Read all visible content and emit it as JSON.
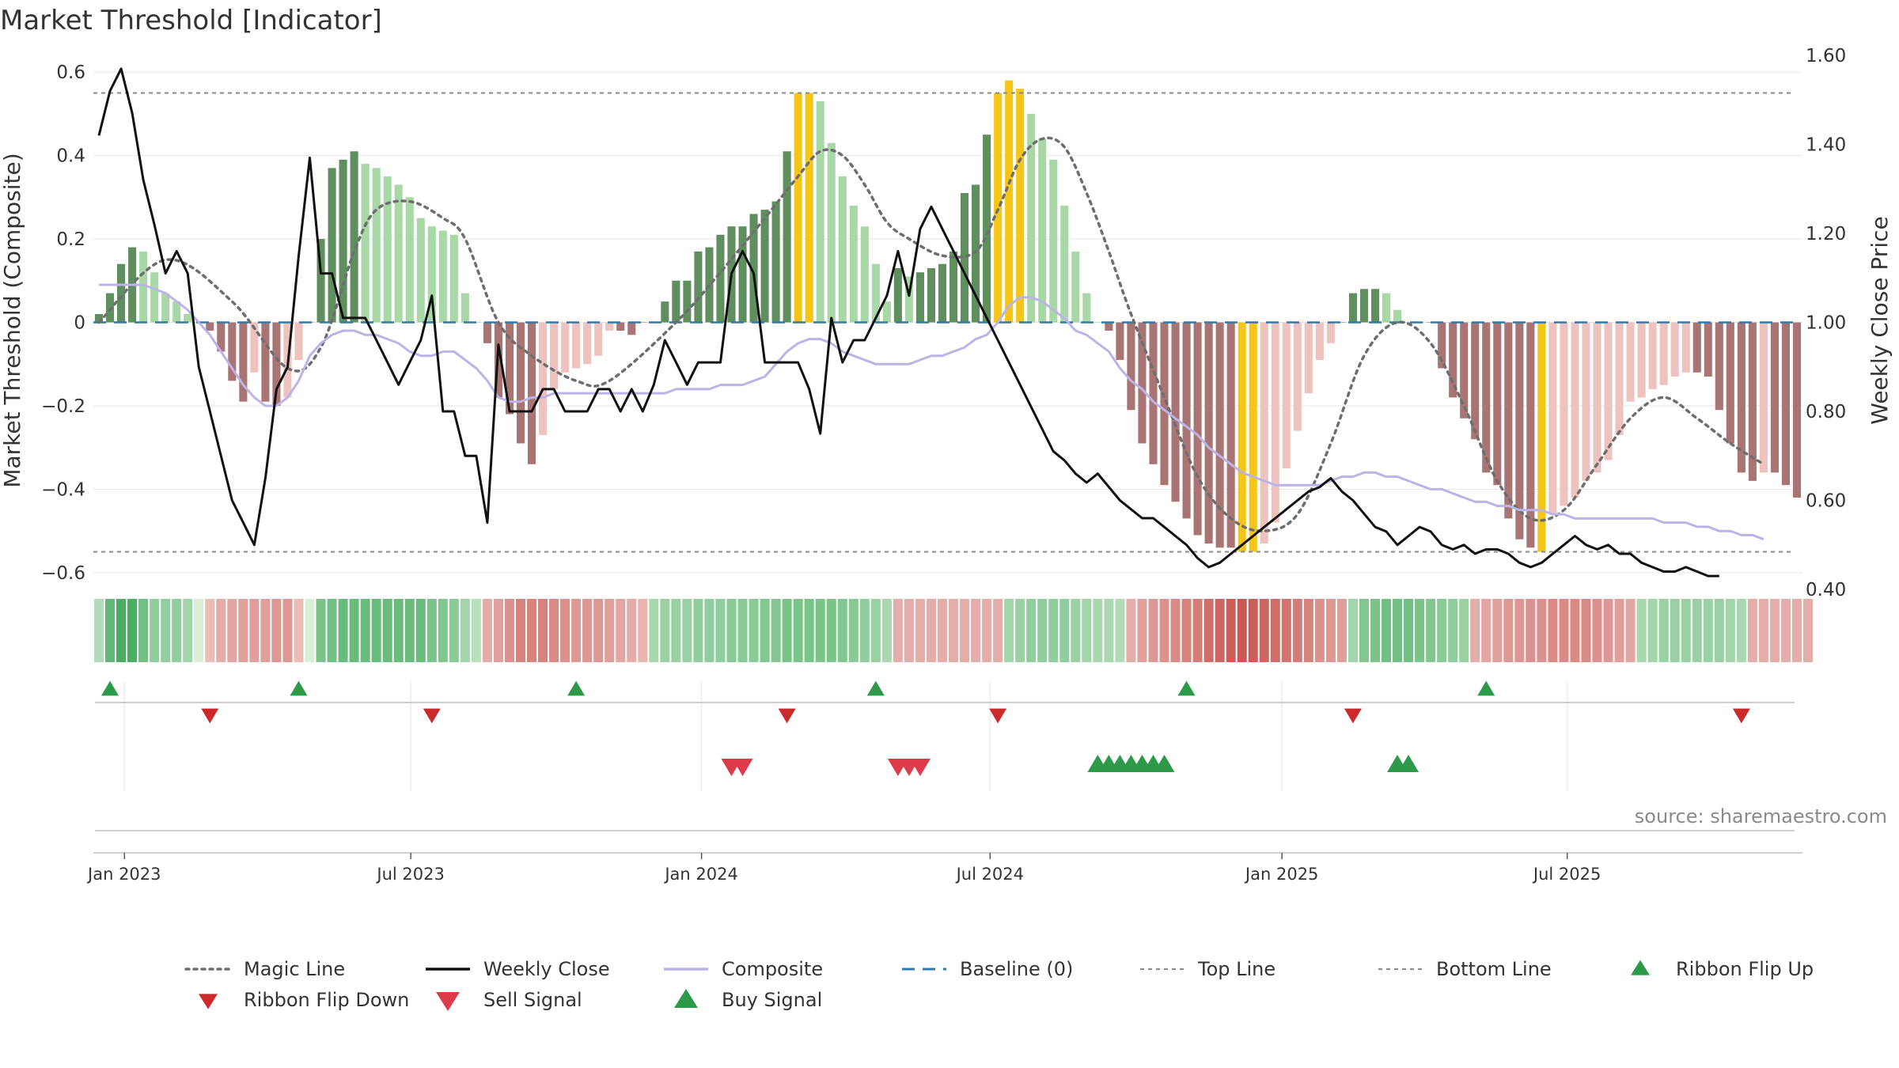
{
  "chart_data": {
    "type": "bar",
    "title": "Market Threshold [Indicator]",
    "ylabel": "Market Threshold (Composite)",
    "y2label": "Weekly Close Price",
    "ylim": [
      -0.64,
      0.64
    ],
    "y2lim": [
      0.4,
      1.6
    ],
    "yticks": [
      "0.6",
      "0.4",
      "0.2",
      "0",
      "−0.2",
      "−0.4",
      "−0.6"
    ],
    "ytick_values": [
      0.6,
      0.4,
      0.2,
      0,
      -0.2,
      -0.4,
      -0.6
    ],
    "y2ticks": [
      "1.60",
      "1.40",
      "1.20",
      "1.00",
      "0.80",
      "0.60",
      "0.40"
    ],
    "y2tick_values": [
      1.6,
      1.4,
      1.2,
      1.0,
      0.8,
      0.6,
      0.4
    ],
    "x_start": "2022-12-16",
    "x_step_weeks": 1,
    "xticks": [
      {
        "label": "Jan 2023",
        "week": 2.3
      },
      {
        "label": "Jul 2023",
        "week": 28.1
      },
      {
        "label": "Jan 2024",
        "week": 54.3
      },
      {
        "label": "Jul 2024",
        "week": 80.3
      },
      {
        "label": "Jan 2025",
        "week": 106.6
      },
      {
        "label": "Jul 2025",
        "week": 132.3
      }
    ],
    "top_line": 0.55,
    "bottom_line": -0.55,
    "bars": [
      0.02,
      0.07,
      0.14,
      0.18,
      0.17,
      0.12,
      0.07,
      0.05,
      0.02,
      0.0,
      -0.02,
      -0.07,
      -0.14,
      -0.19,
      -0.12,
      -0.19,
      -0.2,
      -0.18,
      -0.09,
      0.0,
      0.2,
      0.37,
      0.39,
      0.41,
      0.38,
      0.37,
      0.35,
      0.33,
      0.3,
      0.25,
      0.23,
      0.22,
      0.21,
      0.07,
      0.0,
      -0.05,
      -0.18,
      -0.22,
      -0.29,
      -0.34,
      -0.27,
      -0.16,
      -0.12,
      -0.11,
      -0.1,
      -0.08,
      -0.02,
      -0.02,
      -0.03,
      0.0,
      0.0,
      0.05,
      0.1,
      0.1,
      0.17,
      0.18,
      0.21,
      0.23,
      0.23,
      0.26,
      0.27,
      0.29,
      0.41,
      0.55,
      0.55,
      0.53,
      0.43,
      0.35,
      0.28,
      0.23,
      0.14,
      0.05,
      0.13,
      0.11,
      0.12,
      0.13,
      0.14,
      0.17,
      0.31,
      0.33,
      0.45,
      0.55,
      0.58,
      0.56,
      0.5,
      0.44,
      0.39,
      0.28,
      0.17,
      0.07,
      0.0,
      -0.02,
      -0.09,
      -0.21,
      -0.29,
      -0.34,
      -0.39,
      -0.43,
      -0.47,
      -0.51,
      -0.53,
      -0.54,
      -0.54,
      -0.55,
      -0.55,
      -0.53,
      -0.48,
      -0.35,
      -0.26,
      -0.17,
      -0.09,
      -0.05,
      0.0,
      0.07,
      0.08,
      0.08,
      0.07,
      0.03,
      0.0,
      0.0,
      0.0,
      -0.11,
      -0.18,
      -0.23,
      -0.28,
      -0.36,
      -0.39,
      -0.47,
      -0.52,
      -0.54,
      -0.55,
      -0.46,
      -0.44,
      -0.42,
      -0.38,
      -0.36,
      -0.33,
      -0.27,
      -0.19,
      -0.18,
      -0.16,
      -0.15,
      -0.13,
      -0.12,
      -0.12,
      -0.13,
      -0.21,
      -0.29,
      -0.36,
      -0.38,
      -0.36,
      -0.36,
      -0.39,
      -0.42
    ],
    "close": [
      1.42,
      1.52,
      1.57,
      1.47,
      1.32,
      1.22,
      1.11,
      1.16,
      1.11,
      0.9,
      0.8,
      0.7,
      0.6,
      0.55,
      0.5,
      0.65,
      0.85,
      0.9,
      1.15,
      1.37,
      1.11,
      1.11,
      1.01,
      1.01,
      1.01,
      0.96,
      0.91,
      0.86,
      0.91,
      0.96,
      1.06,
      0.8,
      0.8,
      0.7,
      0.7,
      0.55,
      0.95,
      0.8,
      0.8,
      0.8,
      0.85,
      0.85,
      0.8,
      0.8,
      0.8,
      0.85,
      0.85,
      0.8,
      0.85,
      0.8,
      0.86,
      0.96,
      0.91,
      0.86,
      0.91,
      0.91,
      0.91,
      1.11,
      1.16,
      1.11,
      0.91,
      0.91,
      0.91,
      0.91,
      0.85,
      0.75,
      1.01,
      0.91,
      0.96,
      0.96,
      1.01,
      1.06,
      1.16,
      1.06,
      1.21,
      1.26,
      1.21,
      1.16,
      1.11,
      1.06,
      1.01,
      0.96,
      0.91,
      0.86,
      0.81,
      0.76,
      0.71,
      0.69,
      0.66,
      0.64,
      0.66,
      0.63,
      0.6,
      0.58,
      0.56,
      0.56,
      0.54,
      0.52,
      0.5,
      0.47,
      0.45,
      0.46,
      0.48,
      0.5,
      0.52,
      0.54,
      0.56,
      0.58,
      0.6,
      0.62,
      0.63,
      0.65,
      0.62,
      0.6,
      0.57,
      0.54,
      0.53,
      0.5,
      0.52,
      0.54,
      0.53,
      0.5,
      0.49,
      0.5,
      0.48,
      0.49,
      0.49,
      0.48,
      0.46,
      0.45,
      0.46,
      0.48,
      0.5,
      0.52,
      0.5,
      0.49,
      0.5,
      0.48,
      0.48,
      0.46,
      0.45,
      0.44,
      0.44,
      0.45,
      0.44,
      0.43,
      0.43
    ],
    "composite": [
      0.09,
      0.09,
      0.09,
      0.09,
      0.09,
      0.08,
      0.07,
      0.05,
      0.03,
      0.0,
      -0.03,
      -0.07,
      -0.11,
      -0.15,
      -0.18,
      -0.2,
      -0.2,
      -0.18,
      -0.14,
      -0.08,
      -0.05,
      -0.03,
      -0.02,
      -0.02,
      -0.03,
      -0.03,
      -0.04,
      -0.05,
      -0.07,
      -0.08,
      -0.08,
      -0.07,
      -0.07,
      -0.09,
      -0.11,
      -0.14,
      -0.18,
      -0.19,
      -0.19,
      -0.18,
      -0.18,
      -0.17,
      -0.17,
      -0.17,
      -0.17,
      -0.17,
      -0.17,
      -0.17,
      -0.17,
      -0.17,
      -0.17,
      -0.17,
      -0.16,
      -0.16,
      -0.16,
      -0.16,
      -0.15,
      -0.15,
      -0.15,
      -0.14,
      -0.13,
      -0.1,
      -0.07,
      -0.05,
      -0.04,
      -0.04,
      -0.05,
      -0.07,
      -0.08,
      -0.09,
      -0.1,
      -0.1,
      -0.1,
      -0.1,
      -0.09,
      -0.08,
      -0.08,
      -0.07,
      -0.06,
      -0.04,
      -0.03,
      0.0,
      0.04,
      0.06,
      0.06,
      0.05,
      0.03,
      0.01,
      -0.02,
      -0.03,
      -0.05,
      -0.07,
      -0.11,
      -0.14,
      -0.16,
      -0.19,
      -0.21,
      -0.23,
      -0.25,
      -0.27,
      -0.3,
      -0.32,
      -0.34,
      -0.36,
      -0.37,
      -0.38,
      -0.39,
      -0.39,
      -0.39,
      -0.39,
      -0.39,
      -0.38,
      -0.37,
      -0.37,
      -0.36,
      -0.36,
      -0.37,
      -0.37,
      -0.38,
      -0.39,
      -0.4,
      -0.4,
      -0.41,
      -0.42,
      -0.43,
      -0.43,
      -0.44,
      -0.44,
      -0.45,
      -0.45,
      -0.45,
      -0.46,
      -0.46,
      -0.47,
      -0.47,
      -0.47,
      -0.47,
      -0.47,
      -0.47,
      -0.47,
      -0.47,
      -0.48,
      -0.48,
      -0.48,
      -0.49,
      -0.49,
      -0.5,
      -0.5,
      -0.51,
      -0.51,
      -0.52
    ],
    "magic_line_points": [
      [
        0,
        0.0
      ],
      [
        6,
        0.15
      ],
      [
        12,
        0.05
      ],
      [
        17,
        -0.11
      ],
      [
        20,
        -0.06
      ],
      [
        23,
        0.17
      ],
      [
        25,
        0.27
      ],
      [
        28,
        0.29
      ],
      [
        31,
        0.25
      ],
      [
        33,
        0.2
      ],
      [
        36,
        0.0
      ],
      [
        39,
        -0.08
      ],
      [
        43,
        -0.14
      ],
      [
        46,
        -0.14
      ],
      [
        52,
        0.0
      ],
      [
        56,
        0.12
      ],
      [
        60,
        0.25
      ],
      [
        63,
        0.35
      ],
      [
        65,
        0.41
      ],
      [
        67,
        0.4
      ],
      [
        69,
        0.33
      ],
      [
        71,
        0.24
      ],
      [
        73,
        0.2
      ],
      [
        76,
        0.16
      ],
      [
        79,
        0.17
      ],
      [
        81,
        0.27
      ],
      [
        83,
        0.39
      ],
      [
        85,
        0.44
      ],
      [
        87,
        0.42
      ],
      [
        89,
        0.31
      ],
      [
        91,
        0.17
      ],
      [
        93,
        0.02
      ],
      [
        96,
        -0.18
      ],
      [
        99,
        -0.37
      ],
      [
        102,
        -0.47
      ],
      [
        105,
        -0.5
      ],
      [
        108,
        -0.46
      ],
      [
        111,
        -0.29
      ],
      [
        114,
        -0.08
      ],
      [
        117,
        0.0
      ],
      [
        120,
        -0.05
      ],
      [
        123,
        -0.2
      ],
      [
        126,
        -0.38
      ],
      [
        129,
        -0.47
      ],
      [
        132,
        -0.45
      ],
      [
        135,
        -0.34
      ],
      [
        138,
        -0.23
      ],
      [
        141,
        -0.18
      ],
      [
        144,
        -0.23
      ],
      [
        147,
        -0.29
      ],
      [
        150,
        -0.34
      ]
    ],
    "ribbon_ratings": [
      0.25,
      0.75,
      0.9,
      0.9,
      0.65,
      0.45,
      0.45,
      0.45,
      0.35,
      0.0,
      -0.2,
      -0.3,
      -0.35,
      -0.4,
      -0.4,
      -0.4,
      -0.45,
      -0.45,
      -0.2,
      0.0,
      0.6,
      0.65,
      0.7,
      0.7,
      0.7,
      0.7,
      0.7,
      0.7,
      0.7,
      0.7,
      0.6,
      0.55,
      0.5,
      0.35,
      0.2,
      -0.3,
      -0.4,
      -0.5,
      -0.6,
      -0.6,
      -0.6,
      -0.55,
      -0.5,
      -0.45,
      -0.45,
      -0.45,
      -0.4,
      -0.35,
      -0.3,
      -0.25,
      0.3,
      0.4,
      0.4,
      0.4,
      0.45,
      0.45,
      0.45,
      0.5,
      0.5,
      0.5,
      0.55,
      0.55,
      0.6,
      0.6,
      0.6,
      0.6,
      0.6,
      0.55,
      0.5,
      0.45,
      0.4,
      0.3,
      -0.3,
      -0.3,
      -0.3,
      -0.3,
      -0.3,
      -0.3,
      -0.3,
      -0.3,
      -0.3,
      -0.3,
      0.35,
      0.4,
      0.45,
      0.45,
      0.45,
      0.45,
      0.4,
      0.35,
      0.3,
      0.3,
      0.25,
      -0.3,
      -0.4,
      -0.45,
      -0.5,
      -0.55,
      -0.6,
      -0.65,
      -0.75,
      -0.8,
      -0.85,
      -0.9,
      -0.85,
      -0.8,
      -0.75,
      -0.7,
      -0.65,
      -0.6,
      -0.5,
      -0.45,
      -0.4,
      0.35,
      0.55,
      0.6,
      0.65,
      0.65,
      0.65,
      0.6,
      0.55,
      0.5,
      0.45,
      0.4,
      -0.3,
      -0.35,
      -0.4,
      -0.45,
      -0.45,
      -0.5,
      -0.5,
      -0.55,
      -0.55,
      -0.55,
      -0.55,
      -0.5,
      -0.45,
      -0.4,
      -0.35,
      0.3,
      0.35,
      0.4,
      0.4,
      0.4,
      0.4,
      0.4,
      0.4,
      0.35,
      0.3,
      -0.3,
      -0.3,
      -0.3,
      -0.3,
      -0.3,
      -0.3
    ],
    "ribbon_flip_up": [
      1,
      18,
      43,
      70,
      98,
      125
    ],
    "ribbon_flip_down": [
      10,
      30,
      62,
      81,
      113,
      148
    ],
    "sell_signals": [
      57,
      58,
      72,
      73,
      74
    ],
    "buy_signals": [
      90,
      91,
      92,
      93,
      94,
      95,
      96,
      117,
      118
    ],
    "legend": [
      {
        "label": "Magic Line",
        "style": "dotted-line"
      },
      {
        "label": "Weekly Close",
        "style": "solid-line"
      },
      {
        "label": "Composite",
        "style": "line"
      },
      {
        "label": "Baseline (0)",
        "style": "dashed-line"
      },
      {
        "label": "Top Line",
        "style": "dotted-line-thin"
      },
      {
        "label": "Bottom Line",
        "style": "dotted-line-thin"
      },
      {
        "label": "Ribbon Flip Up",
        "style": "triangle-up-small"
      },
      {
        "label": "Ribbon Flip Down",
        "style": "triangle-down-small"
      },
      {
        "label": "Sell Signal",
        "style": "triangle-down"
      },
      {
        "label": "Buy Signal",
        "style": "triangle-up"
      }
    ],
    "source": "source: sharemaestro.com"
  },
  "colors": {
    "bar_pos_strong": "#5f8f5f",
    "bar_pos_weak": "#a8d8a6",
    "bar_neg_strong": "#a97574",
    "bar_neg_weak": "#eec3bf",
    "bar_extreme": "#f5c518",
    "close_line": "#111111",
    "composite_line": "#bcb4e6",
    "magic_line": "#6e6e6e",
    "baseline": "#2e7bb0",
    "threshold_line": "#8a8a8a",
    "flip_up": "#2d9a4a",
    "flip_down": "#cc2a2a",
    "sell": "#dd3a4a",
    "buy": "#2d9a4a",
    "grid": "#e6e6e6"
  }
}
